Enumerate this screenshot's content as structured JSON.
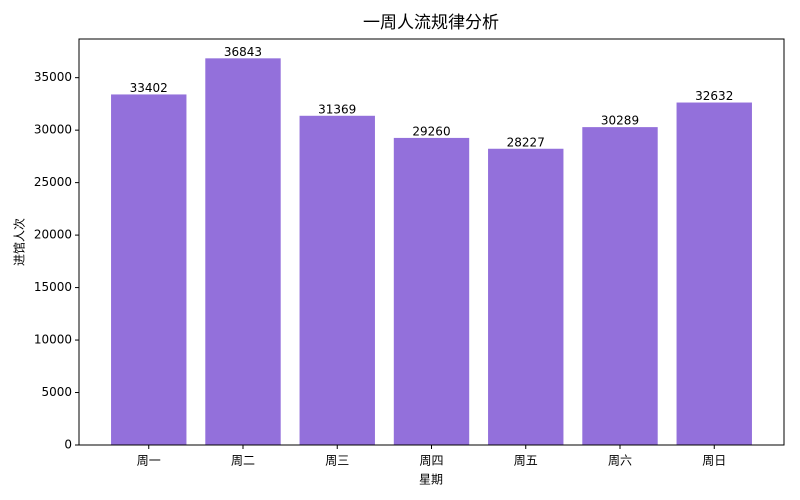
{
  "chart_data": {
    "type": "bar",
    "title": "一周人流规律分析",
    "x_label": "星期",
    "y_label": "进馆人次",
    "categories": [
      "周一",
      "周二",
      "周三",
      "周四",
      "周五",
      "周六",
      "周日"
    ],
    "values": [
      33402,
      36843,
      31369,
      29260,
      28227,
      30289,
      32632
    ],
    "color": "#9370db",
    "ylim": [
      0,
      38685
    ],
    "yticks": [
      0,
      5000,
      10000,
      15000,
      20000,
      25000,
      30000,
      35000
    ],
    "grid": false
  }
}
